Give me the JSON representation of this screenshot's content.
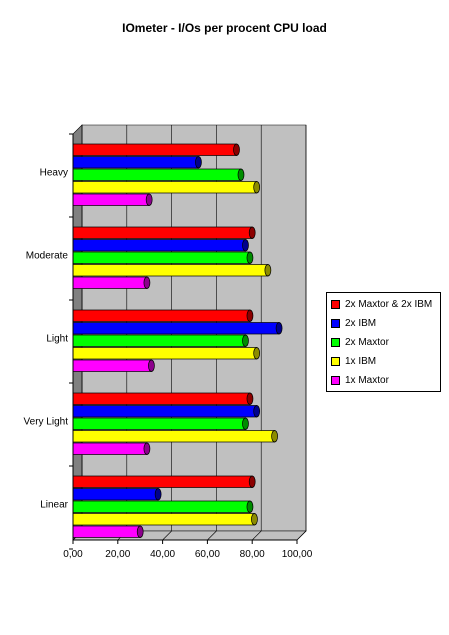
{
  "chart_data": {
    "type": "bar",
    "orientation": "horizontal",
    "three_d": true,
    "title": "IOmeter - I/Os per procent CPU load",
    "xlabel": "",
    "ylabel": "",
    "categories": [
      "Heavy",
      "Moderate",
      "Light",
      "Very Light",
      "Linear"
    ],
    "xlim": [
      0,
      100
    ],
    "xticks": [
      "0,00",
      "20,00",
      "40,00",
      "60,00",
      "80,00",
      "100,00"
    ],
    "grid": "vertical",
    "legend_position": "right",
    "series": [
      {
        "name": "2x Maxtor & 2x IBM",
        "color": "#ff0000",
        "values": [
          73,
          80,
          79,
          79,
          80
        ]
      },
      {
        "name": "2x IBM",
        "color": "#0000ff",
        "values": [
          56,
          77,
          92,
          82,
          38
        ]
      },
      {
        "name": "2x Maxtor",
        "color": "#00ff00",
        "values": [
          75,
          79,
          77,
          77,
          79
        ]
      },
      {
        "name": "1x IBM",
        "color": "#ffff00",
        "values": [
          82,
          87,
          82,
          90,
          81
        ]
      },
      {
        "name": "1x Maxtor",
        "color": "#ff00ff",
        "values": [
          34,
          33,
          35,
          33,
          30
        ]
      }
    ]
  }
}
